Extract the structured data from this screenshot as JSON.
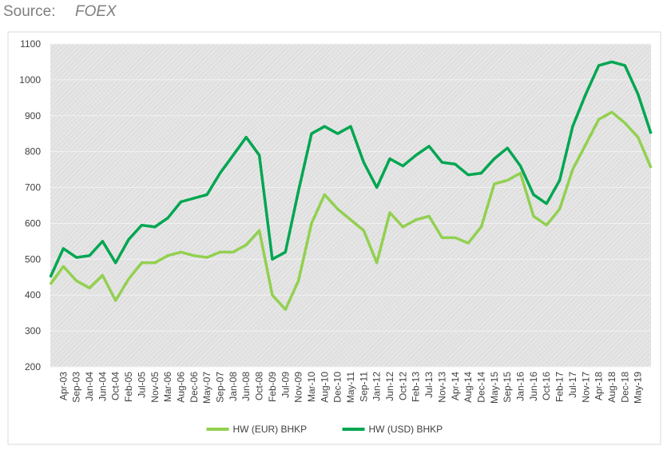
{
  "chart_data": {
    "type": "line",
    "source_label": "Source:",
    "source": "FOEX",
    "categories": [
      null,
      "Apr-03",
      "Sep-03",
      "Jan-04",
      "Jun-04",
      "Oct-04",
      "Feb-05",
      "Jul-05",
      "Nov-05",
      "Mar-06",
      "Aug-06",
      "Dec-06",
      "May-07",
      "Sep-07",
      "Jan-08",
      "Jun-08",
      "Oct-08",
      "Feb-09",
      "Jul-09",
      "Nov-09",
      "Mar-10",
      "Aug-10",
      "Dec-10",
      "May-11",
      "Sep-11",
      "Jan-12",
      "Jun-12",
      "Oct-12",
      "Feb-13",
      "Jul-13",
      "Nov-13",
      "Apr-14",
      "Aug-14",
      "Dec-14",
      "May-15",
      "Sep-15",
      "Jan-16",
      "Jun-16",
      "Oct-16",
      "Feb-17",
      "Jul-17",
      "Nov-17",
      "Apr-18",
      "Aug-18",
      "Dec-18",
      "May-19",
      null
    ],
    "series": [
      {
        "name": "HW (EUR) BHKP",
        "color": "#92d050",
        "values": [
          430,
          480,
          440,
          420,
          455,
          385,
          445,
          490,
          490,
          510,
          520,
          510,
          505,
          520,
          520,
          540,
          580,
          400,
          360,
          440,
          600,
          680,
          640,
          610,
          580,
          490,
          630,
          590,
          610,
          620,
          560,
          560,
          545,
          590,
          710,
          720,
          740,
          620,
          595,
          640,
          750,
          820,
          890,
          910,
          880,
          840,
          755
        ]
      },
      {
        "name": "HW (USD) BHKP",
        "color": "#00a651",
        "values": [
          450,
          530,
          505,
          510,
          550,
          490,
          555,
          595,
          590,
          615,
          660,
          670,
          680,
          740,
          790,
          840,
          790,
          500,
          520,
          690,
          850,
          870,
          850,
          870,
          770,
          700,
          780,
          760,
          790,
          815,
          770,
          765,
          735,
          740,
          780,
          810,
          760,
          680,
          655,
          720,
          870,
          960,
          1040,
          1050,
          1040,
          960,
          850
        ]
      }
    ],
    "ylim": [
      200,
      1100
    ],
    "yticks": [
      200,
      300,
      400,
      500,
      600,
      700,
      800,
      900,
      1000,
      1100
    ],
    "grid": true,
    "legend": "bottom"
  }
}
